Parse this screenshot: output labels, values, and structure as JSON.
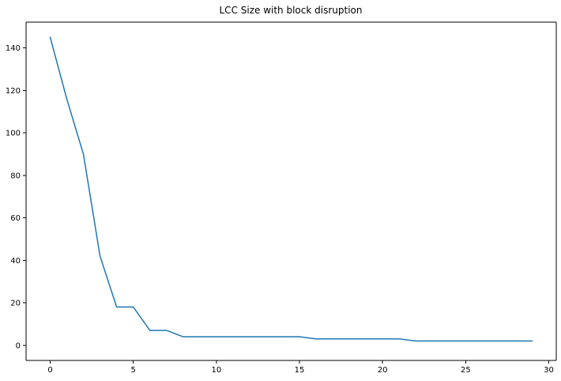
{
  "chart_data": {
    "type": "line",
    "title": "LCC Size with block disruption",
    "xlabel": "",
    "ylabel": "",
    "x": [
      0,
      1,
      2,
      3,
      4,
      5,
      6,
      7,
      8,
      9,
      10,
      11,
      12,
      13,
      14,
      15,
      16,
      17,
      18,
      19,
      20,
      21,
      22,
      23,
      24,
      25,
      26,
      27,
      28,
      29
    ],
    "series": [
      {
        "values": [
          145,
          116,
          90,
          42,
          18,
          18,
          7,
          7,
          4,
          4,
          4,
          4,
          4,
          4,
          4,
          4,
          3,
          3,
          3,
          3,
          3,
          3,
          2,
          2,
          2,
          2,
          2,
          2,
          2,
          2
        ],
        "color": "#1f77b4"
      }
    ],
    "xlim": [
      -1.45,
      30.45
    ],
    "ylim": [
      -7.15,
      152.15
    ],
    "xticks": [
      0,
      5,
      10,
      15,
      20,
      25,
      30
    ],
    "yticks": [
      0,
      20,
      40,
      60,
      80,
      100,
      120,
      140
    ],
    "grid": false,
    "legend": "none"
  }
}
